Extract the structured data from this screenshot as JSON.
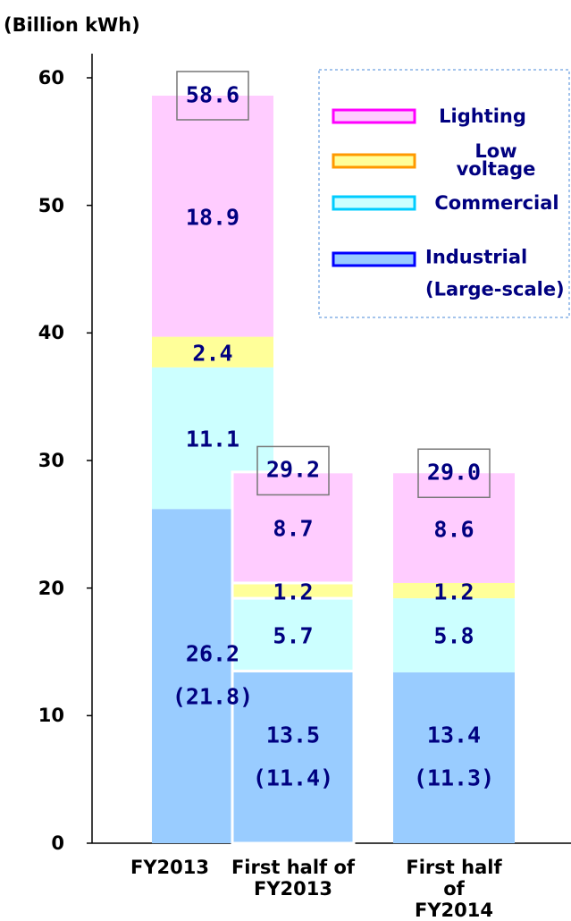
{
  "chart_data": {
    "type": "stacked_bar",
    "y_label": "(Billion kWh)",
    "categories": [
      "FY2013",
      "First half of\nFY2013",
      "First half of\nFY2014"
    ],
    "series": [
      {
        "name": "Industrial\n(Large-scale)",
        "color": "#99ccff",
        "edge": "#0000ff",
        "values": [
          26.2,
          13.5,
          13.4
        ],
        "sub_values": [
          21.8,
          11.4,
          11.3
        ],
        "sub_value_labels": [
          "(21.8)",
          "(11.4)",
          "(11.3)"
        ]
      },
      {
        "name": "Commercial",
        "color": "#ccffff",
        "edge": "#00ccff",
        "values": [
          11.1,
          5.7,
          5.8
        ]
      },
      {
        "name": "Low\nvoltage",
        "color": "#ffff99",
        "edge": "#ff9900",
        "values": [
          2.4,
          1.2,
          1.2
        ]
      },
      {
        "name": "Lighting",
        "color": "#ffccff",
        "edge": "#ff00ff",
        "values": [
          18.9,
          8.7,
          8.6
        ]
      }
    ],
    "totals": [
      58.6,
      29.2,
      29.0
    ],
    "total_labels": [
      "58.6",
      "29.2",
      "29.0"
    ],
    "ylim": [
      0,
      60
    ],
    "yticks": [
      0,
      10,
      20,
      30,
      40,
      50,
      60
    ]
  }
}
